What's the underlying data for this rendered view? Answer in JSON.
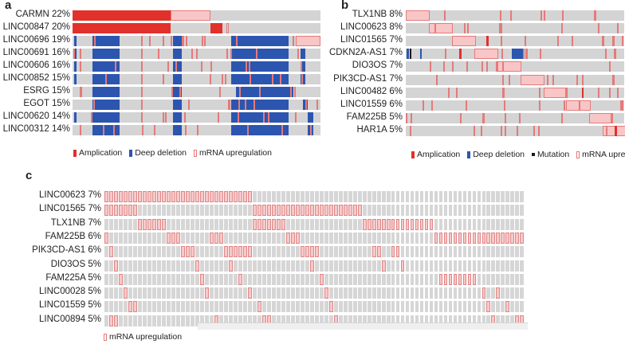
{
  "chart_data": [
    {
      "panel": "a",
      "type": "oncoprint",
      "legend": [
        {
          "name": "Amplication",
          "color": "#e2302b"
        },
        {
          "name": "Deep deletion",
          "color": "#2c55b0"
        },
        {
          "name": "mRNA upregulation",
          "color": "#f8c6c6"
        }
      ],
      "rows": [
        {
          "gene": "CARMN",
          "pct": "22%"
        },
        {
          "gene": "LINC00847",
          "pct": "20%"
        },
        {
          "gene": "LINC00696",
          "pct": "19%"
        },
        {
          "gene": "LINC00691",
          "pct": "16%"
        },
        {
          "gene": "LINC00606",
          "pct": "16%"
        },
        {
          "gene": "LINC00852",
          "pct": "15%"
        },
        {
          "gene": "ESRG",
          "pct": "15%"
        },
        {
          "gene": "EGOT",
          "pct": "15%"
        },
        {
          "gene": "LINC00620",
          "pct": "14%"
        },
        {
          "gene": "LINC00312",
          "pct": "14%"
        }
      ]
    },
    {
      "panel": "b",
      "type": "oncoprint",
      "legend": [
        {
          "name": "Amplication",
          "color": "#e2302b"
        },
        {
          "name": "Deep deletion",
          "color": "#2c55b0"
        },
        {
          "name": "Mutation",
          "color": "#1a1a1a"
        },
        {
          "name": "mRNA upregulation",
          "color": "#f8c6c6"
        }
      ],
      "rows": [
        {
          "gene": "TLX1NB",
          "pct": "8%"
        },
        {
          "gene": "LINC00623",
          "pct": "8%"
        },
        {
          "gene": "LINC01565",
          "pct": "7%"
        },
        {
          "gene": "CDKN2A-AS1",
          "pct": "7%"
        },
        {
          "gene": "DIO3OS",
          "pct": "7%"
        },
        {
          "gene": "PIK3CD-AS1",
          "pct": "7%"
        },
        {
          "gene": "LINC00482",
          "pct": "6%"
        },
        {
          "gene": "LINC01559",
          "pct": "6%"
        },
        {
          "gene": "FAM225B",
          "pct": "5%"
        },
        {
          "gene": "HAR1A",
          "pct": "5%"
        }
      ]
    },
    {
      "panel": "c",
      "type": "oncoprint",
      "legend": [
        {
          "name": "mRNA upregulation",
          "color": "#f6c9c9"
        }
      ],
      "rows": [
        {
          "gene": "LINC00623",
          "pct": "7%"
        },
        {
          "gene": "LINC01565",
          "pct": "7%"
        },
        {
          "gene": "TLX1NB",
          "pct": "7%"
        },
        {
          "gene": "FAM225B",
          "pct": "6%"
        },
        {
          "gene": "PIK3CD-AS1",
          "pct": "6%"
        },
        {
          "gene": "DIO3OS",
          "pct": "5%"
        },
        {
          "gene": "FAM225A",
          "pct": "5%"
        },
        {
          "gene": "LINC00028",
          "pct": "5%"
        },
        {
          "gene": "LINC01559",
          "pct": "5%"
        },
        {
          "gene": "LINC00894",
          "pct": "5%"
        }
      ]
    }
  ]
}
